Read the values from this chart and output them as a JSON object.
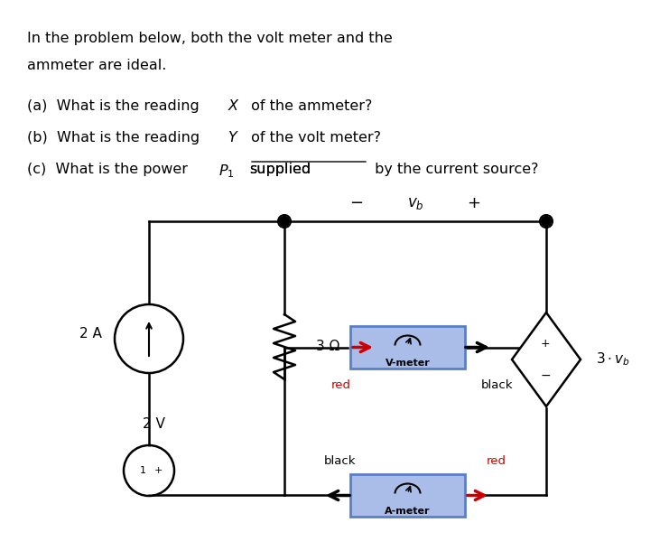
{
  "bg_color": "#ffffff",
  "text_color": "#000000",
  "line_color": "#000000",
  "red_color": "#cc0000",
  "blue_fill": "#5b7fc7",
  "blue_fill_light": "#aabde8",
  "header_text": "In the problem below, both the volt meter and the\nammeter are ideal.",
  "q_a": "(a)  What is the reading Χ of the ammeter?",
  "q_b": "(b)  What is the reading Υ of the volt meter?",
  "q_c": "(c)  What is the power Ρ₁ supplied by the current source?",
  "label_2A": "2 A",
  "label_2V": "2 V",
  "label_3ohm": "3 Ω",
  "label_vb": "v_b",
  "label_vmeter": "V-meter",
  "label_ameter": "A-meter",
  "label_3vb": "3 · v_b",
  "label_red": "red",
  "label_black": "black",
  "label_plus": "+",
  "label_minus": "-"
}
